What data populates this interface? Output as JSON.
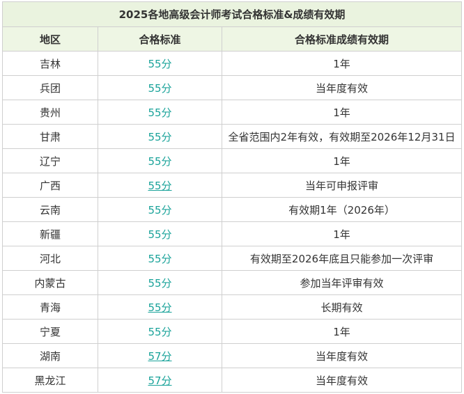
{
  "table": {
    "title": "2025各地高级会计师考试合格标准&成绩有效期",
    "header": [
      "地区",
      "合格标准",
      "合格标准成绩有效期"
    ],
    "rows": [
      [
        "吉林",
        "55分",
        "1年"
      ],
      [
        "兵团",
        "55分",
        "当年度有效"
      ],
      [
        "贵州",
        "55分",
        "1年"
      ],
      [
        "甘肃",
        "55分",
        "全省范围内2年有效，有效期至2026年12月31日"
      ],
      [
        "辽宁",
        "55分",
        "1年"
      ],
      [
        "广西",
        "55分",
        "当年可申报评审"
      ],
      [
        "云南",
        "55分",
        "有效期1年（2026年）"
      ],
      [
        "新疆",
        "55分",
        "1年"
      ],
      [
        "河北",
        "55分",
        "有效期至2026年底且只能参加一次评审"
      ],
      [
        "内蒙古",
        "55分",
        "参加当年评审有效"
      ],
      [
        "青海",
        "55分",
        "长期有效"
      ],
      [
        "宁夏",
        "55分",
        "1年"
      ],
      [
        "湖南",
        "57分",
        "当年度有效"
      ],
      [
        "黑龙江",
        "57分",
        "当年度有效"
      ]
    ]
  }
}
